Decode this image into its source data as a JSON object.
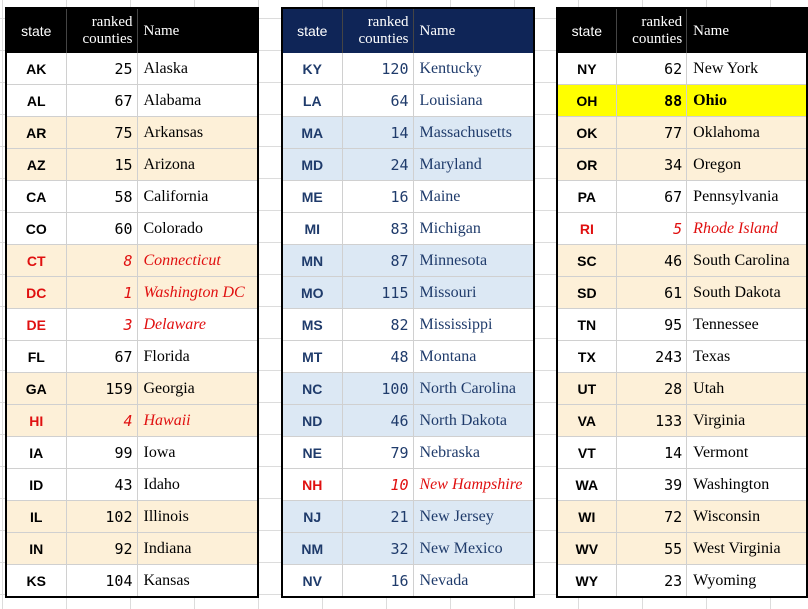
{
  "headers": {
    "state": "state",
    "ranked_line1": "ranked",
    "ranked_line2": "counties",
    "name": "Name"
  },
  "tables": [
    {
      "rows": [
        {
          "abbr": "AK",
          "count": "25",
          "name": "Alaska",
          "style": "white"
        },
        {
          "abbr": "AL",
          "count": "67",
          "name": "Alabama",
          "style": "white"
        },
        {
          "abbr": "AR",
          "count": "75",
          "name": "Arkansas",
          "style": "peach"
        },
        {
          "abbr": "AZ",
          "count": "15",
          "name": "Arizona",
          "style": "peach"
        },
        {
          "abbr": "CA",
          "count": "58",
          "name": "California",
          "style": "white"
        },
        {
          "abbr": "CO",
          "count": "60",
          "name": "Colorado",
          "style": "white"
        },
        {
          "abbr": "CT",
          "count": "8",
          "name": "Connecticut",
          "style": "peach",
          "red": true
        },
        {
          "abbr": "DC",
          "count": "1",
          "name": "Washington DC",
          "style": "peach",
          "red": true
        },
        {
          "abbr": "DE",
          "count": "3",
          "name": "Delaware",
          "style": "white",
          "red": true
        },
        {
          "abbr": "FL",
          "count": "67",
          "name": "Florida",
          "style": "white"
        },
        {
          "abbr": "GA",
          "count": "159",
          "name": "Georgia",
          "style": "peach"
        },
        {
          "abbr": "HI",
          "count": "4",
          "name": "Hawaii",
          "style": "peach",
          "red": true
        },
        {
          "abbr": "IA",
          "count": "99",
          "name": "Iowa",
          "style": "white"
        },
        {
          "abbr": "ID",
          "count": "43",
          "name": "Idaho",
          "style": "white"
        },
        {
          "abbr": "IL",
          "count": "102",
          "name": "Illinois",
          "style": "peach"
        },
        {
          "abbr": "IN",
          "count": "92",
          "name": "Indiana",
          "style": "peach"
        },
        {
          "abbr": "KS",
          "count": "104",
          "name": "Kansas",
          "style": "white"
        }
      ]
    },
    {
      "rows": [
        {
          "abbr": "KY",
          "count": "120",
          "name": "Kentucky",
          "style": "white"
        },
        {
          "abbr": "LA",
          "count": "64",
          "name": "Louisiana",
          "style": "white"
        },
        {
          "abbr": "MA",
          "count": "14",
          "name": "Massachusetts",
          "style": "blue"
        },
        {
          "abbr": "MD",
          "count": "24",
          "name": "Maryland",
          "style": "blue"
        },
        {
          "abbr": "ME",
          "count": "16",
          "name": "Maine",
          "style": "white"
        },
        {
          "abbr": "MI",
          "count": "83",
          "name": "Michigan",
          "style": "white"
        },
        {
          "abbr": "MN",
          "count": "87",
          "name": "Minnesota",
          "style": "blue"
        },
        {
          "abbr": "MO",
          "count": "115",
          "name": "Missouri",
          "style": "blue"
        },
        {
          "abbr": "MS",
          "count": "82",
          "name": "Mississippi",
          "style": "white"
        },
        {
          "abbr": "MT",
          "count": "48",
          "name": "Montana",
          "style": "white"
        },
        {
          "abbr": "NC",
          "count": "100",
          "name": "North Carolina",
          "style": "blue"
        },
        {
          "abbr": "ND",
          "count": "46",
          "name": "North Dakota",
          "style": "blue"
        },
        {
          "abbr": "NE",
          "count": "79",
          "name": "Nebraska",
          "style": "white"
        },
        {
          "abbr": "NH",
          "count": "10",
          "name": "New Hampshire",
          "style": "white",
          "red": true
        },
        {
          "abbr": "NJ",
          "count": "21",
          "name": "New Jersey",
          "style": "blue"
        },
        {
          "abbr": "NM",
          "count": "32",
          "name": "New Mexico",
          "style": "blue"
        },
        {
          "abbr": "NV",
          "count": "16",
          "name": "Nevada",
          "style": "white"
        }
      ]
    },
    {
      "rows": [
        {
          "abbr": "NY",
          "count": "62",
          "name": "New York",
          "style": "white"
        },
        {
          "abbr": "OH",
          "count": "88",
          "name": "Ohio",
          "style": "yellow"
        },
        {
          "abbr": "OK",
          "count": "77",
          "name": "Oklahoma",
          "style": "peach"
        },
        {
          "abbr": "OR",
          "count": "34",
          "name": "Oregon",
          "style": "peach"
        },
        {
          "abbr": "PA",
          "count": "67",
          "name": "Pennsylvania",
          "style": "white"
        },
        {
          "abbr": "RI",
          "count": "5",
          "name": "Rhode Island",
          "style": "white",
          "red": true
        },
        {
          "abbr": "SC",
          "count": "46",
          "name": "South Carolina",
          "style": "peach"
        },
        {
          "abbr": "SD",
          "count": "61",
          "name": "South Dakota",
          "style": "peach"
        },
        {
          "abbr": "TN",
          "count": "95",
          "name": "Tennessee",
          "style": "white"
        },
        {
          "abbr": "TX",
          "count": "243",
          "name": "Texas",
          "style": "white"
        },
        {
          "abbr": "UT",
          "count": "28",
          "name": "Utah",
          "style": "peach"
        },
        {
          "abbr": "VA",
          "count": "133",
          "name": "Virginia",
          "style": "peach"
        },
        {
          "abbr": "VT",
          "count": "14",
          "name": "Vermont",
          "style": "white"
        },
        {
          "abbr": "WA",
          "count": "39",
          "name": "Washington",
          "style": "white"
        },
        {
          "abbr": "WI",
          "count": "72",
          "name": "Wisconsin",
          "style": "peach"
        },
        {
          "abbr": "WV",
          "count": "55",
          "name": "West Virginia",
          "style": "peach"
        },
        {
          "abbr": "WY",
          "count": "23",
          "name": "Wyoming",
          "style": "white"
        }
      ]
    }
  ]
}
